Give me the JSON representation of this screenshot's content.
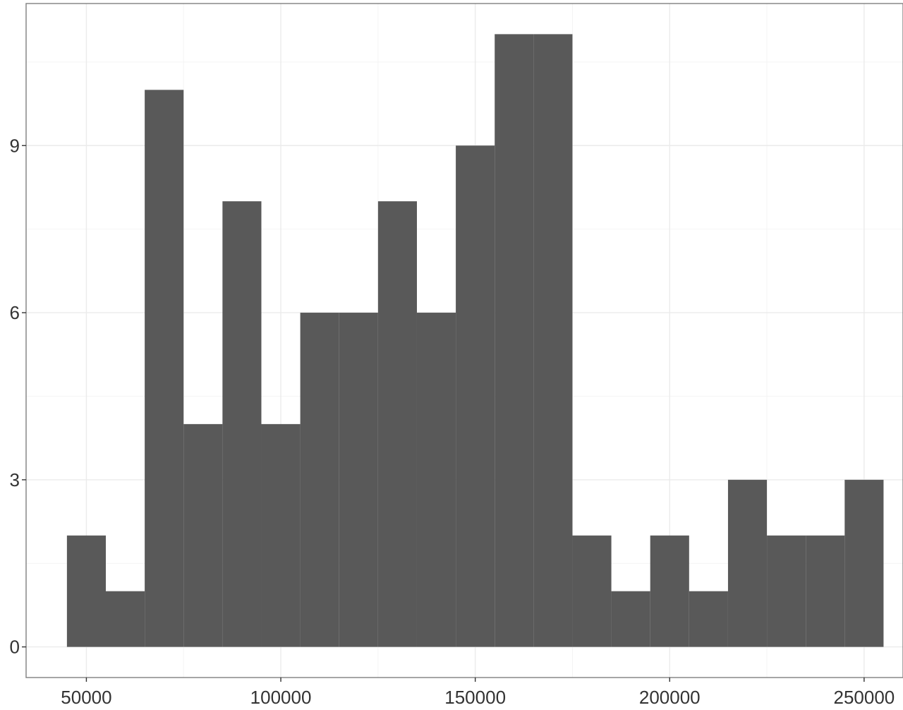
{
  "chart_data": {
    "type": "bar",
    "subtype": "histogram",
    "title": "",
    "xlabel": "",
    "ylabel": "",
    "bin_width": 10000,
    "bins": [
      {
        "start": 45000,
        "end": 55000,
        "count": 2
      },
      {
        "start": 55000,
        "end": 65000,
        "count": 1
      },
      {
        "start": 65000,
        "end": 75000,
        "count": 10
      },
      {
        "start": 75000,
        "end": 85000,
        "count": 4
      },
      {
        "start": 85000,
        "end": 95000,
        "count": 8
      },
      {
        "start": 95000,
        "end": 105000,
        "count": 4
      },
      {
        "start": 105000,
        "end": 115000,
        "count": 6
      },
      {
        "start": 115000,
        "end": 125000,
        "count": 6
      },
      {
        "start": 125000,
        "end": 135000,
        "count": 8
      },
      {
        "start": 135000,
        "end": 145000,
        "count": 6
      },
      {
        "start": 145000,
        "end": 155000,
        "count": 9
      },
      {
        "start": 155000,
        "end": 165000,
        "count": 11
      },
      {
        "start": 165000,
        "end": 175000,
        "count": 11
      },
      {
        "start": 175000,
        "end": 185000,
        "count": 2
      },
      {
        "start": 185000,
        "end": 195000,
        "count": 1
      },
      {
        "start": 195000,
        "end": 205000,
        "count": 2
      },
      {
        "start": 205000,
        "end": 215000,
        "count": 1
      },
      {
        "start": 215000,
        "end": 225000,
        "count": 3
      },
      {
        "start": 225000,
        "end": 235000,
        "count": 2
      },
      {
        "start": 235000,
        "end": 245000,
        "count": 2
      },
      {
        "start": 245000,
        "end": 255000,
        "count": 3
      }
    ],
    "xlim": [
      34500,
      260000
    ],
    "ylim": [
      -0.55,
      11.55
    ],
    "x_ticks": [
      50000,
      100000,
      150000,
      200000,
      250000
    ],
    "x_tick_labels": [
      "50000",
      "100000",
      "150000",
      "200000",
      "250000"
    ],
    "y_ticks": [
      0,
      3,
      6,
      9
    ],
    "y_tick_labels": [
      "0",
      "3",
      "6",
      "9"
    ],
    "grid": true,
    "legend": "none",
    "colors": {
      "bar_fill": "#595959",
      "panel_background": "#ffffff",
      "grid_major": "#ebebeb",
      "grid_minor": "#f4f4f4",
      "panel_border": "#7f7f7f",
      "tick_text": "#333333"
    }
  }
}
